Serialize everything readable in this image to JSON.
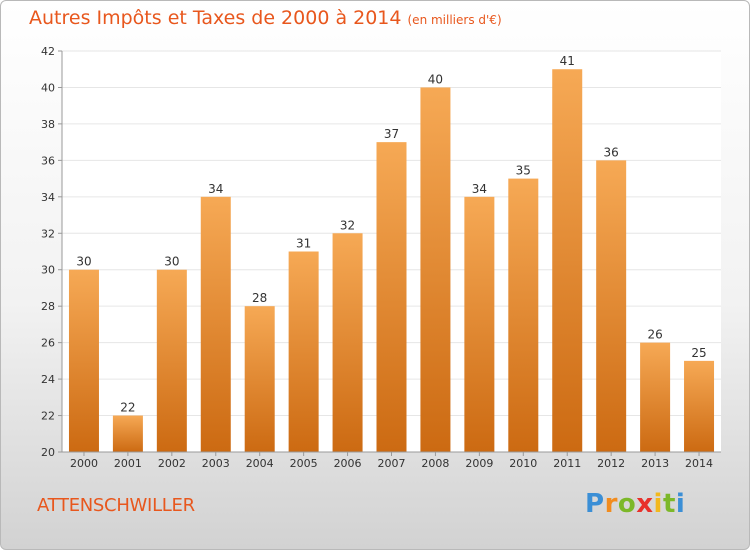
{
  "header": {
    "title": "Autres Impôts et Taxes de 2000 à 2014",
    "unit": "(en milliers d'€)"
  },
  "footer": {
    "place": "ATTENSCHWILLER",
    "brand_letters": [
      "P",
      "r",
      "o",
      "x",
      "i",
      "t",
      "i"
    ],
    "brand_colors": [
      "#3b8fd6",
      "#f28c1e",
      "#7cb829",
      "#e8312b",
      "#f2b81e",
      "#7cb829",
      "#3b8fd6"
    ]
  },
  "colors": {
    "bar_top": "#f6a955",
    "bar_bottom": "#cc6a12",
    "text": "#333333",
    "grid": "#e6e6e6",
    "axis": "#999999"
  },
  "chart_data": {
    "type": "bar",
    "title": "Autres Impôts et Taxes de 2000 à 2014",
    "subtitle": "(en milliers d'€)",
    "xlabel": "",
    "ylabel": "",
    "categories": [
      "2000",
      "2001",
      "2002",
      "2003",
      "2004",
      "2005",
      "2006",
      "2007",
      "2008",
      "2009",
      "2010",
      "2011",
      "2012",
      "2013",
      "2014"
    ],
    "values": [
      30,
      22,
      30,
      34,
      28,
      31,
      32,
      37,
      40,
      34,
      35,
      41,
      36,
      26,
      25
    ],
    "ylim": [
      20,
      42
    ],
    "yticks": [
      20,
      22,
      24,
      26,
      28,
      30,
      32,
      34,
      36,
      38,
      40,
      42
    ],
    "data_labels": true,
    "grid": true,
    "legend": "none"
  }
}
